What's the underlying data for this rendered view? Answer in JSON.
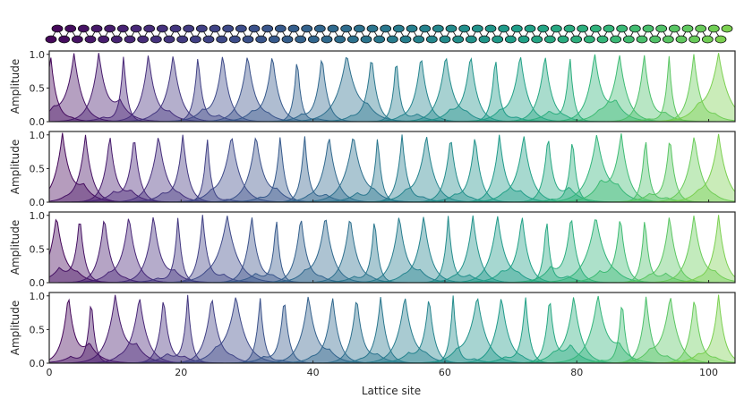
{
  "chart_data": {
    "type": "area",
    "panels": 4,
    "n_peaks": 28,
    "x_range": [
      0,
      104
    ],
    "ylim": [
      0,
      1.05
    ],
    "xticks": [
      0,
      20,
      40,
      60,
      80,
      100
    ],
    "yticks": [
      0.0,
      0.5,
      1.0
    ],
    "xtick_labels": [
      "0",
      "20",
      "40",
      "60",
      "80",
      "100"
    ],
    "ytick_labels": [
      "0.0",
      "0.5",
      "1.0"
    ],
    "xlabel": "Lattice site",
    "ylabel": "Amplitude",
    "colormap": "viridis",
    "panel_offsets": [
      0,
      1.8,
      0.9,
      2.7
    ],
    "lattice_chain": {
      "top_row_sites": 52,
      "bottom_row_sites": 52
    }
  }
}
